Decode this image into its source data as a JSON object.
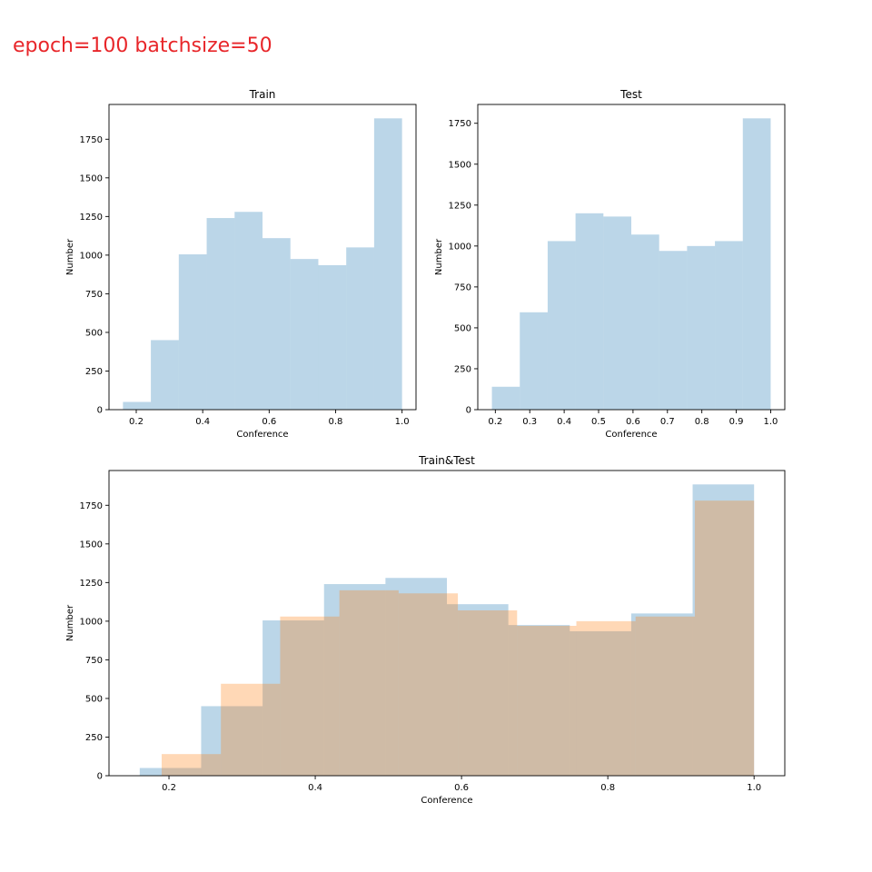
{
  "figure_title": "epoch=100  batchsize=50",
  "colors": {
    "train": "#1f77b4",
    "test": "#ff7f0e",
    "title": "#e8262a"
  },
  "chart_data": [
    {
      "type": "bar",
      "histogram": true,
      "title": "Train",
      "xlabel": "Conference",
      "ylabel": "Number",
      "xlim": [
        0.118,
        1.042
      ],
      "ylim": [
        0,
        1975
      ],
      "xticks": [
        "0.2",
        "0.4",
        "0.6",
        "0.8",
        "1.0"
      ],
      "yticks": [
        "0",
        "250",
        "500",
        "750",
        "1000",
        "1250",
        "1500",
        "1750"
      ],
      "series": [
        {
          "bin_edges": [
            0.16,
            0.244,
            0.328,
            0.412,
            0.496,
            0.58,
            0.664,
            0.748,
            0.832,
            0.916,
            1.0
          ],
          "values": [
            50,
            450,
            1005,
            1240,
            1280,
            1110,
            975,
            935,
            1050,
            1885
          ],
          "color": "#1f77b4",
          "alpha": 0.3
        }
      ]
    },
    {
      "type": "bar",
      "histogram": true,
      "title": "Test",
      "xlabel": "Conference",
      "ylabel": "Number",
      "xlim": [
        0.149,
        1.041
      ],
      "ylim": [
        0,
        1865
      ],
      "xticks": [
        "0.2",
        "0.3",
        "0.4",
        "0.5",
        "0.6",
        "0.7",
        "0.8",
        "0.9",
        "1.0"
      ],
      "yticks": [
        "0",
        "250",
        "500",
        "750",
        "1000",
        "1250",
        "1500",
        "1750"
      ],
      "series": [
        {
          "bin_edges": [
            0.19,
            0.271,
            0.352,
            0.433,
            0.514,
            0.595,
            0.676,
            0.757,
            0.838,
            0.919,
            1.0
          ],
          "values": [
            140,
            595,
            1030,
            1200,
            1180,
            1070,
            970,
            1000,
            1030,
            1780
          ],
          "color": "#1f77b4",
          "alpha": 0.3
        }
      ]
    },
    {
      "type": "bar",
      "histogram": true,
      "title": "Train&Test",
      "xlabel": "Conference",
      "ylabel": "Number",
      "xlim": [
        0.118,
        1.042
      ],
      "ylim": [
        0,
        1975
      ],
      "xticks": [
        "0.2",
        "0.4",
        "0.6",
        "0.8",
        "1.0"
      ],
      "yticks": [
        "0",
        "250",
        "500",
        "750",
        "1000",
        "1250",
        "1500",
        "1750"
      ],
      "series": [
        {
          "bin_edges": [
            0.16,
            0.244,
            0.328,
            0.412,
            0.496,
            0.58,
            0.664,
            0.748,
            0.832,
            0.916,
            1.0
          ],
          "values": [
            50,
            450,
            1005,
            1240,
            1280,
            1110,
            975,
            935,
            1050,
            1885
          ],
          "color": "#1f77b4",
          "alpha": 0.3
        },
        {
          "bin_edges": [
            0.19,
            0.271,
            0.352,
            0.433,
            0.514,
            0.595,
            0.676,
            0.757,
            0.838,
            0.919,
            1.0
          ],
          "values": [
            140,
            595,
            1030,
            1200,
            1180,
            1070,
            970,
            1000,
            1030,
            1780
          ],
          "color": "#ff7f0e",
          "alpha": 0.3
        }
      ]
    }
  ]
}
